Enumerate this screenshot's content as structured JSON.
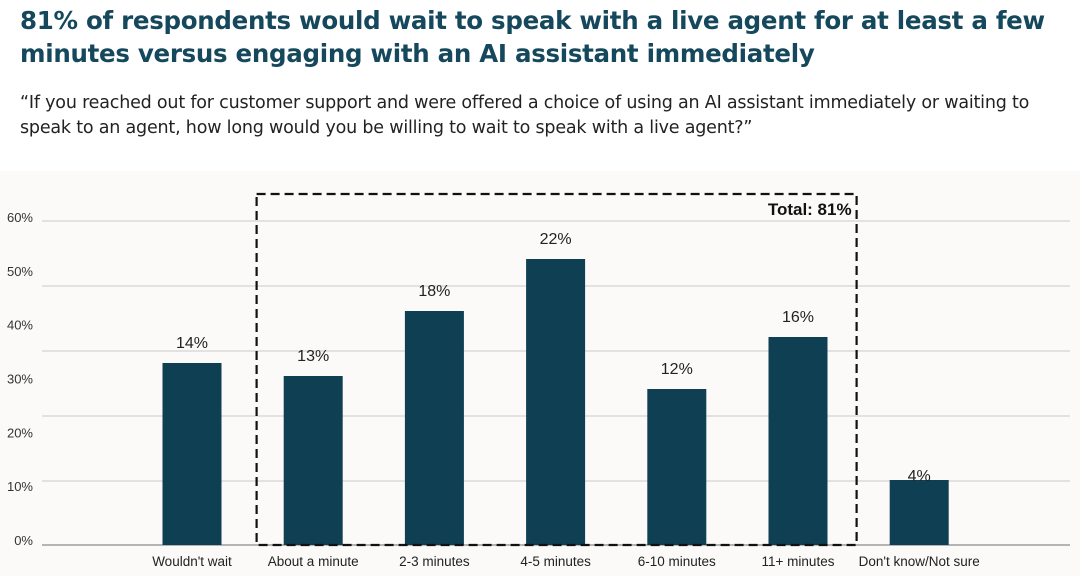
{
  "colors": {
    "title": "#15485c",
    "bar": "#0f3f52",
    "grid": "#d9d9d9",
    "axis": "#8a8a8a",
    "highlight_box": "#111111",
    "chart_background": "#fbfaf8"
  },
  "header": {
    "title": "81% of respondents would wait to speak with a live agent for at least a few minutes versus engaging with an AI assistant immediately",
    "question": "“If you reached out for customer support and were offered a choice of using an AI assistant immediately or waiting to speak to an agent, how long would you be willing to wait to speak with a live agent?”"
  },
  "chart_data": {
    "type": "bar",
    "title": "81% of respondents would wait to speak with a live agent for at least a few minutes versus engaging with an AI assistant immediately",
    "subtitle": "“If you reached out for customer support and were offered a choice of using an AI assistant immediately or waiting to speak to an agent, how long would you be willing to wait to speak with a live agent?”",
    "xlabel": "",
    "ylabel": "",
    "categories": [
      "Wouldn't wait",
      "About a minute",
      "2-3 minutes",
      "4-5 minutes",
      "6-10 minutes",
      "11+ minutes",
      "Don't know/Not sure"
    ],
    "values": [
      14,
      13,
      18,
      22,
      12,
      16,
      4
    ],
    "data_labels": [
      "14%",
      "13%",
      "18%",
      "22%",
      "12%",
      "16%",
      "4%"
    ],
    "y_tick_labels": [
      "0%",
      "10%",
      "20%",
      "30%",
      "40%",
      "50%",
      "60%"
    ],
    "ylim": [
      0,
      60
    ],
    "grid": true,
    "legend": "none",
    "annotation": {
      "text": "Total: 81%",
      "type": "dashed-box",
      "covers_categories": [
        "About a minute",
        "2-3 minutes",
        "4-5 minutes",
        "6-10 minutes",
        "11+ minutes"
      ]
    }
  }
}
